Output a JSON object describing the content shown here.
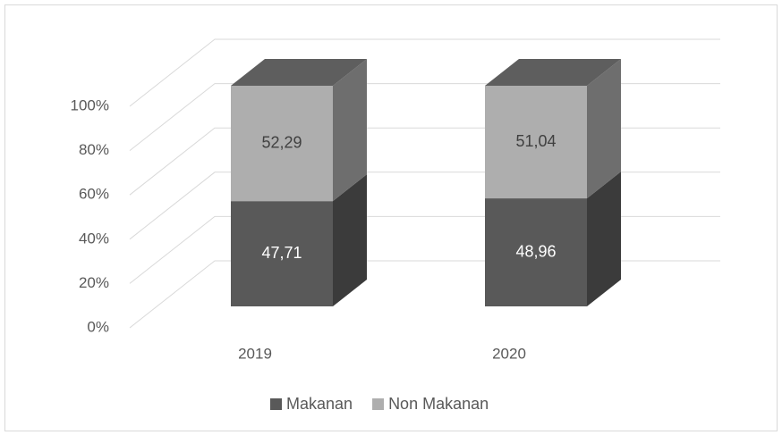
{
  "chart_data": {
    "type": "bar3d_stacked",
    "categories": [
      "2019",
      "2020"
    ],
    "series": [
      {
        "name": "Makanan",
        "color": "#595959",
        "side": "#3b3b3b",
        "top": "#4a4a4a",
        "label_color": "#ffffff",
        "values": [
          47.71,
          48.96
        ],
        "value_labels": [
          "47,71",
          "48,96"
        ]
      },
      {
        "name": "Non Makanan",
        "color": "#aeaeae",
        "side": "#6e6e6e",
        "top": "#5e5e5e",
        "label_color": "#404040",
        "values": [
          52.29,
          51.04
        ],
        "value_labels": [
          "52,29",
          "51,04"
        ]
      }
    ],
    "ylim": [
      0,
      100
    ],
    "yticks": [
      {
        "value": 0,
        "label": "0%"
      },
      {
        "value": 20,
        "label": "20%"
      },
      {
        "value": 40,
        "label": "40%"
      },
      {
        "value": 60,
        "label": "60%"
      },
      {
        "value": 80,
        "label": "80%"
      },
      {
        "value": 100,
        "label": "100%"
      }
    ],
    "grid": true,
    "legend": "bottom"
  }
}
